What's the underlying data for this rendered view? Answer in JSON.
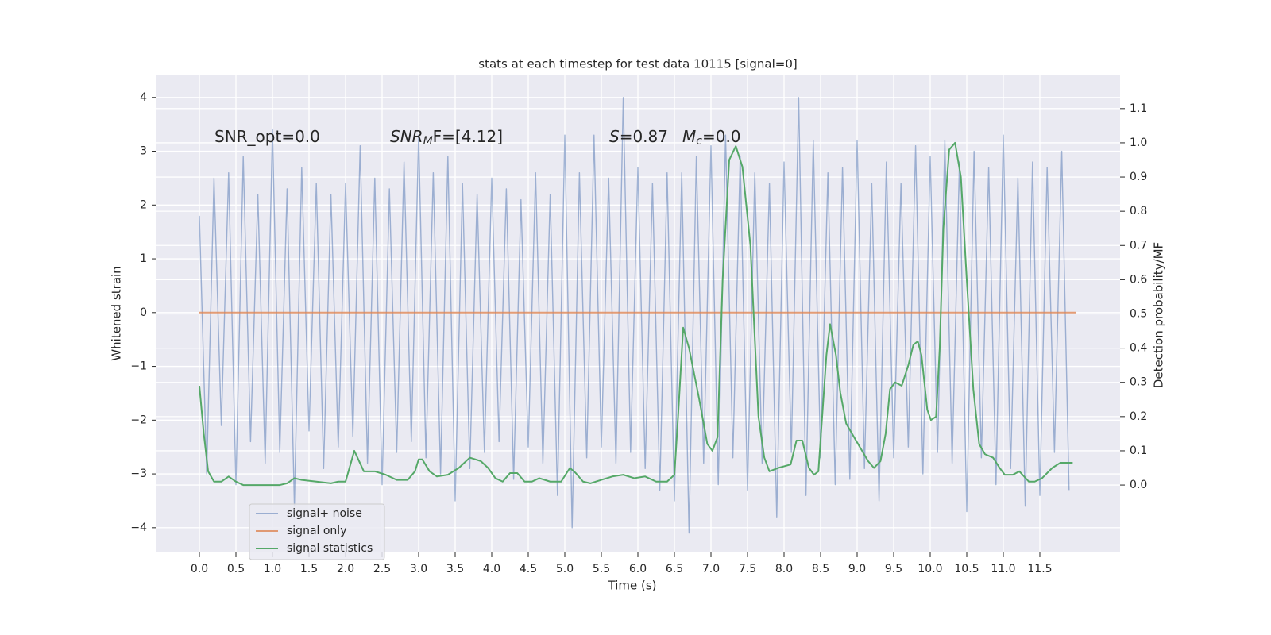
{
  "chart_data": {
    "type": "line",
    "title": "stats at each timestep for test data 10115 [signal=0]",
    "x_label": "Time (s)",
    "y_label": "Whitened strain",
    "y2_label": "Detection probability/MF",
    "xlim": [
      -0.587,
      12.598
    ],
    "ylim": [
      -4.46,
      4.41
    ],
    "y2lim": [
      -0.197,
      1.197
    ],
    "xticks": [
      {
        "value": 0,
        "label": "0.0"
      },
      {
        "value": 0.5,
        "label": "0.5"
      },
      {
        "value": 1,
        "label": "1.0"
      },
      {
        "value": 1.5,
        "label": "1.5"
      },
      {
        "value": 2,
        "label": "2.0"
      },
      {
        "value": 2.5,
        "label": "2.5"
      },
      {
        "value": 3,
        "label": "3.0"
      },
      {
        "value": 3.5,
        "label": "3.5"
      },
      {
        "value": 4,
        "label": "4.0"
      },
      {
        "value": 4.5,
        "label": "4.5"
      },
      {
        "value": 5,
        "label": "5.0"
      },
      {
        "value": 5.5,
        "label": "5.5"
      },
      {
        "value": 6,
        "label": "6.0"
      },
      {
        "value": 6.5,
        "label": "6.5"
      },
      {
        "value": 7,
        "label": "7.0"
      },
      {
        "value": 7.5,
        "label": "7.5"
      },
      {
        "value": 8,
        "label": "8.0"
      },
      {
        "value": 8.5,
        "label": "8.5"
      },
      {
        "value": 9,
        "label": "9.0"
      },
      {
        "value": 9.5,
        "label": "9.5"
      },
      {
        "value": 10,
        "label": "10.0"
      },
      {
        "value": 10.5,
        "label": "10.5"
      },
      {
        "value": 11,
        "label": "11.0"
      },
      {
        "value": 11.5,
        "label": "11.5"
      }
    ],
    "yticks": [
      {
        "value": -4,
        "label": "−4"
      },
      {
        "value": -3,
        "label": "−3"
      },
      {
        "value": -2,
        "label": "−2"
      },
      {
        "value": -1,
        "label": "−1"
      },
      0,
      1,
      2,
      3,
      4
    ],
    "y2ticks": [
      {
        "value": 0,
        "label": "0.0"
      },
      {
        "value": 0.1,
        "label": "0.1"
      },
      {
        "value": 0.2,
        "label": "0.2"
      },
      {
        "value": 0.3,
        "label": "0.3"
      },
      {
        "value": 0.4,
        "label": "0.4"
      },
      {
        "value": 0.5,
        "label": "0.5"
      },
      {
        "value": 0.6,
        "label": "0.6"
      },
      {
        "value": 0.7,
        "label": "0.7"
      },
      {
        "value": 0.8,
        "label": "0.8"
      },
      {
        "value": 0.9,
        "label": "0.9"
      },
      {
        "value": 1.0,
        "label": "1.0"
      },
      {
        "value": 1.1,
        "label": "1.1"
      }
    ],
    "grid": true,
    "legend": "lower left",
    "annotations": [
      [
        {
          "text": "SNR_opt=0.0",
          "style": "normal"
        }
      ],
      [
        {
          "text": "SNR",
          "style": "italic"
        },
        {
          "text": "M",
          "style": "italic-sub"
        },
        {
          "text": "F=[4.12]",
          "style": "normal"
        }
      ],
      [
        {
          "text": "S",
          "style": "italic"
        },
        {
          "text": "=0.87",
          "style": "normal"
        }
      ],
      [
        {
          "text": "M",
          "style": "italic"
        },
        {
          "text": "c",
          "style": "italic-sub"
        },
        {
          "text": "=0.0",
          "style": "normal"
        }
      ]
    ],
    "series": [
      {
        "name": "signal+ noise",
        "color": "#4c72b0",
        "opacity": 0.5,
        "x": [
          0.0,
          0.1,
          0.2,
          0.3,
          0.4,
          0.5,
          0.6,
          0.7,
          0.8,
          0.9,
          1.0,
          1.1,
          1.2,
          1.3,
          1.4,
          1.5,
          1.6,
          1.7,
          1.8,
          1.9,
          2.0,
          2.1,
          2.2,
          2.3,
          2.4,
          2.5,
          2.6,
          2.7,
          2.8,
          2.9,
          3.0,
          3.1,
          3.2,
          3.3,
          3.4,
          3.5,
          3.6,
          3.7,
          3.8,
          3.9,
          4.0,
          4.1,
          4.2,
          4.3,
          4.4,
          4.5,
          4.6,
          4.7,
          4.8,
          4.9,
          5.0,
          5.1,
          5.2,
          5.3,
          5.4,
          5.5,
          5.6,
          5.7,
          5.8,
          5.9,
          6.0,
          6.1,
          6.2,
          6.3,
          6.4,
          6.5,
          6.6,
          6.7,
          6.8,
          6.9,
          7.0,
          7.1,
          7.2,
          7.3,
          7.4,
          7.5,
          7.6,
          7.7,
          7.8,
          7.9,
          8.0,
          8.1,
          8.2,
          8.3,
          8.4,
          8.5,
          8.6,
          8.7,
          8.8,
          8.9,
          9.0,
          9.1,
          9.2,
          9.3,
          9.4,
          9.5,
          9.6,
          9.7,
          9.8,
          9.9,
          10.0,
          10.1,
          10.2,
          10.3,
          10.4,
          10.5,
          10.6,
          10.7,
          10.8,
          10.9,
          11.0,
          11.1,
          11.2,
          11.3,
          11.4,
          11.5,
          11.6,
          11.7,
          11.8,
          11.9
        ],
        "values": [
          1.8,
          -3.0,
          2.5,
          -2.1,
          2.6,
          -3.2,
          2.9,
          -2.4,
          2.2,
          -2.8,
          3.4,
          -2.6,
          2.3,
          -3.6,
          2.7,
          -2.2,
          2.4,
          -2.9,
          2.2,
          -2.5,
          2.4,
          -2.3,
          3.1,
          -2.8,
          2.5,
          -3.2,
          2.3,
          -2.6,
          2.8,
          -2.4,
          3.3,
          -2.7,
          2.6,
          -3.0,
          2.9,
          -3.5,
          2.4,
          -2.9,
          2.2,
          -2.6,
          2.5,
          -2.4,
          2.3,
          -3.1,
          2.1,
          -2.5,
          2.6,
          -2.8,
          2.2,
          -3.4,
          3.3,
          -4.0,
          2.6,
          -2.7,
          3.3,
          -2.5,
          2.5,
          -2.8,
          4.0,
          -2.6,
          2.7,
          -2.9,
          2.4,
          -3.3,
          2.6,
          -3.5,
          2.6,
          -4.1,
          2.9,
          -2.8,
          3.1,
          -3.2,
          3.3,
          -2.7,
          2.9,
          -3.3,
          2.6,
          -2.8,
          2.4,
          -3.8,
          2.8,
          -2.6,
          4.0,
          -3.4,
          3.2,
          -2.7,
          2.6,
          -3.2,
          2.7,
          -3.1,
          3.2,
          -2.9,
          2.4,
          -3.5,
          2.8,
          -2.7,
          2.4,
          -2.5,
          3.1,
          -3.0,
          2.9,
          -2.6,
          3.2,
          -2.8,
          2.8,
          -3.7,
          3.0,
          -2.7,
          2.7,
          -3.2,
          3.3,
          -2.9,
          2.5,
          -3.6,
          2.8,
          -3.4,
          2.7,
          -2.6,
          3.0,
          -3.3
        ]
      },
      {
        "name": "signal only",
        "color": "#dd8452",
        "opacity": 0.8,
        "x": [
          0.0,
          12.0
        ],
        "values": [
          0,
          0
        ]
      },
      {
        "name": "signal statistics",
        "color": "#55a868",
        "opacity": 1,
        "axis": "y2",
        "x": [
          0.0,
          0.06,
          0.12,
          0.2,
          0.3,
          0.4,
          0.5,
          0.6,
          0.8,
          1.0,
          1.1,
          1.2,
          1.3,
          1.4,
          1.6,
          1.8,
          1.9,
          2.0,
          2.12,
          2.25,
          2.4,
          2.55,
          2.7,
          2.85,
          2.95,
          3.0,
          3.05,
          3.15,
          3.25,
          3.4,
          3.55,
          3.7,
          3.85,
          3.95,
          4.05,
          4.15,
          4.25,
          4.35,
          4.45,
          4.55,
          4.65,
          4.8,
          4.95,
          5.07,
          5.15,
          5.25,
          5.35,
          5.5,
          5.65,
          5.8,
          5.95,
          6.1,
          6.25,
          6.4,
          6.5,
          6.55,
          6.62,
          6.7,
          6.84,
          6.95,
          7.02,
          7.09,
          7.16,
          7.25,
          7.34,
          7.43,
          7.54,
          7.65,
          7.73,
          7.8,
          7.92,
          8.09,
          8.17,
          8.25,
          8.34,
          8.41,
          8.47,
          8.58,
          8.63,
          8.71,
          8.77,
          8.85,
          8.93,
          9.04,
          9.15,
          9.23,
          9.32,
          9.39,
          9.45,
          9.52,
          9.61,
          9.7,
          9.77,
          9.83,
          9.88,
          9.96,
          10.01,
          10.08,
          10.13,
          10.18,
          10.26,
          10.34,
          10.42,
          10.5,
          10.59,
          10.67,
          10.75,
          10.86,
          10.95,
          11.02,
          11.13,
          11.22,
          11.35,
          11.43,
          11.53,
          11.67,
          11.78,
          11.87,
          11.95
        ],
        "values": [
          0.29,
          0.15,
          0.04,
          0.01,
          0.01,
          0.025,
          0.01,
          0.0,
          0.0,
          0.0,
          0.0,
          0.005,
          0.02,
          0.015,
          0.01,
          0.005,
          0.01,
          0.01,
          0.1,
          0.04,
          0.04,
          0.03,
          0.015,
          0.015,
          0.04,
          0.075,
          0.075,
          0.04,
          0.025,
          0.03,
          0.05,
          0.08,
          0.07,
          0.05,
          0.02,
          0.01,
          0.035,
          0.035,
          0.01,
          0.01,
          0.02,
          0.01,
          0.01,
          0.05,
          0.035,
          0.01,
          0.005,
          0.015,
          0.025,
          0.03,
          0.02,
          0.025,
          0.01,
          0.01,
          0.03,
          0.2,
          0.46,
          0.4,
          0.25,
          0.12,
          0.1,
          0.14,
          0.6,
          0.95,
          0.99,
          0.93,
          0.7,
          0.2,
          0.08,
          0.04,
          0.05,
          0.06,
          0.13,
          0.13,
          0.05,
          0.03,
          0.04,
          0.38,
          0.47,
          0.38,
          0.27,
          0.18,
          0.15,
          0.11,
          0.07,
          0.05,
          0.07,
          0.15,
          0.28,
          0.3,
          0.29,
          0.35,
          0.41,
          0.42,
          0.38,
          0.22,
          0.19,
          0.2,
          0.4,
          0.75,
          0.98,
          1.0,
          0.9,
          0.6,
          0.28,
          0.12,
          0.09,
          0.08,
          0.05,
          0.03,
          0.03,
          0.04,
          0.01,
          0.01,
          0.02,
          0.05,
          0.065,
          0.065,
          0.065
        ]
      }
    ]
  }
}
